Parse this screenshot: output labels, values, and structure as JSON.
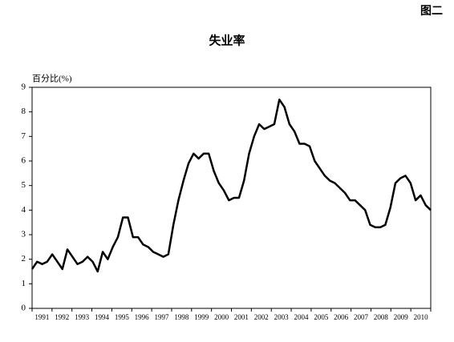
{
  "figure_label": "图二",
  "chart_data": {
    "type": "line",
    "title": "失业率",
    "ylabel": "百分比(%)",
    "categories": [
      "1991",
      null,
      null,
      null,
      "1992",
      null,
      null,
      null,
      "1993",
      null,
      null,
      null,
      "1994",
      null,
      null,
      null,
      "1995",
      null,
      null,
      null,
      "1996",
      null,
      null,
      null,
      "1997",
      null,
      null,
      null,
      "1998",
      null,
      null,
      null,
      "1999",
      null,
      null,
      null,
      "2000",
      null,
      null,
      null,
      "2001",
      null,
      null,
      null,
      "2002",
      null,
      null,
      null,
      "2003",
      null,
      null,
      null,
      "2004",
      null,
      null,
      null,
      "2005",
      null,
      null,
      null,
      "2006",
      null,
      null,
      null,
      "2007",
      null,
      null,
      null,
      "2008",
      null,
      null,
      null,
      "2009",
      null,
      null,
      null,
      "2010",
      null,
      null,
      null
    ],
    "values": [
      1.6,
      1.9,
      1.8,
      1.9,
      2.2,
      1.9,
      1.6,
      2.4,
      2.1,
      1.8,
      1.9,
      2.1,
      1.9,
      1.5,
      2.3,
      2.0,
      2.5,
      2.9,
      3.7,
      3.7,
      2.9,
      2.9,
      2.6,
      2.5,
      2.3,
      2.2,
      2.1,
      2.2,
      3.4,
      4.4,
      5.2,
      5.9,
      6.3,
      6.1,
      6.3,
      6.3,
      5.6,
      5.1,
      4.8,
      4.4,
      4.5,
      4.5,
      5.2,
      6.3,
      7.0,
      7.5,
      7.3,
      7.4,
      7.5,
      8.5,
      8.2,
      7.5,
      7.2,
      6.7,
      6.7,
      6.6,
      6.0,
      5.7,
      5.4,
      5.2,
      5.1,
      4.9,
      4.7,
      4.4,
      4.4,
      4.2,
      4.0,
      3.4,
      3.3,
      3.3,
      3.4,
      4.1,
      5.1,
      5.3,
      5.4,
      5.1,
      4.4,
      4.6,
      4.2,
      4.0
    ],
    "color": "#000000",
    "ylim": [
      0,
      9
    ],
    "yticks": [
      0,
      1,
      2,
      3,
      4,
      5,
      6,
      7,
      8,
      9
    ]
  }
}
